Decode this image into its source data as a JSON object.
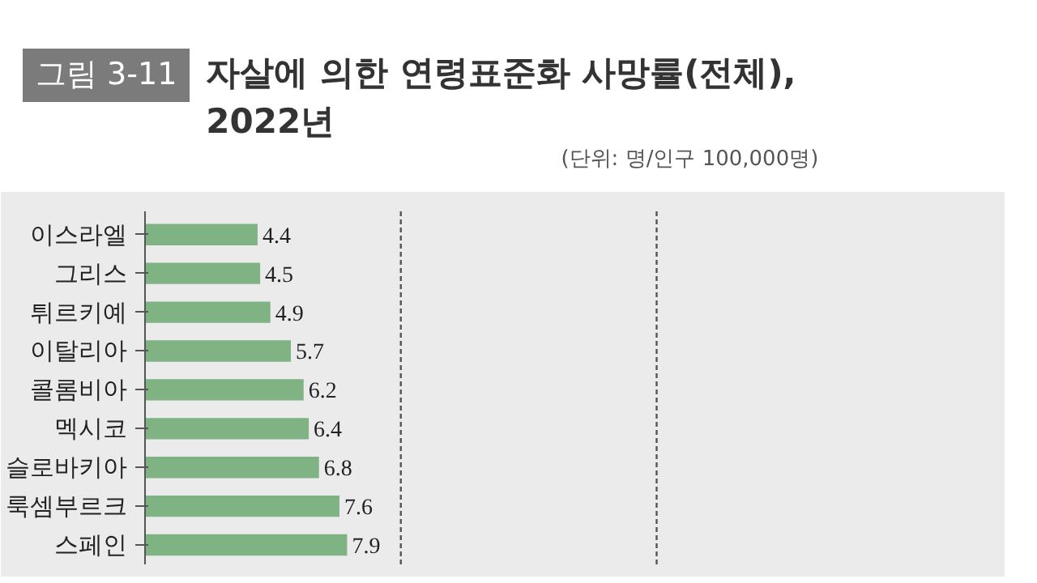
{
  "chart_data": {
    "type": "bar",
    "orientation": "horizontal",
    "title": "자살에 의한 연령표준화 사망률(전체), 2022년",
    "annotations": [
      "그림 3-11",
      "(단위: 명/인구 100,000명)"
    ],
    "categories": [
      "이스라엘",
      "그리스",
      "튀르키예",
      "이탈리아",
      "콜롬비아",
      "멕시코",
      "슬로바키아",
      "룩셈부르크",
      "스페인"
    ],
    "values": [
      4.4,
      4.5,
      4.9,
      5.7,
      6.2,
      6.4,
      6.8,
      7.6,
      7.9
    ],
    "color": "#7fb383",
    "xlim": [
      0,
      33
    ],
    "ref_lines": [
      {
        "axis": "x",
        "value": 10,
        "color": "#555555",
        "line_style": "dashed"
      },
      {
        "axis": "x",
        "value": 20,
        "color": "#555555",
        "line_style": "dashed"
      }
    ],
    "data_labels": true
  }
}
